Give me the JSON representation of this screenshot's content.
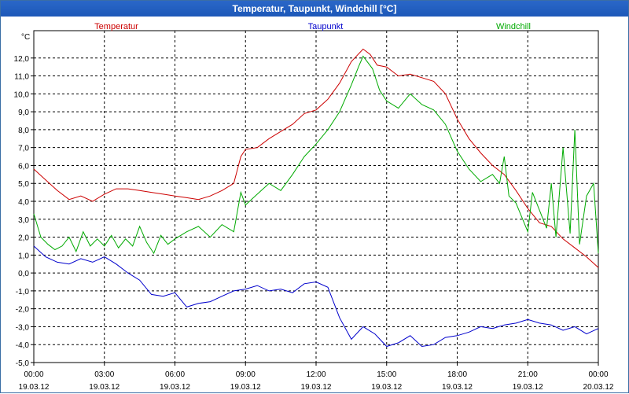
{
  "window": {
    "title": "Temperatur, Taupunkt, Windchill [°C]"
  },
  "chart_data": {
    "type": "line",
    "title": "Temperatur, Taupunkt, Windchill [°C]",
    "ylabel": "°C",
    "ylim": [
      -5,
      13
    ],
    "yticks": [
      "12,0",
      "11,0",
      "10,0",
      "9,0",
      "8,0",
      "7,0",
      "6,0",
      "5,0",
      "4,0",
      "3,0",
      "2,0",
      "1,0",
      "0,0",
      "-1,0",
      "-2,0",
      "-3,0",
      "-4,0",
      "-5,0"
    ],
    "ytick_values": [
      12,
      11,
      10,
      9,
      8,
      7,
      6,
      5,
      4,
      3,
      2,
      1,
      0,
      -1,
      -2,
      -3,
      -4,
      -5
    ],
    "xlim": [
      0,
      24
    ],
    "xticks": [
      {
        "time": "00:00",
        "date": "19.03.12",
        "h": 0
      },
      {
        "time": "03:00",
        "date": "19.03.12",
        "h": 3
      },
      {
        "time": "06:00",
        "date": "19.03.12",
        "h": 6
      },
      {
        "time": "09:00",
        "date": "19.03.12",
        "h": 9
      },
      {
        "time": "12:00",
        "date": "19.03.12",
        "h": 12
      },
      {
        "time": "15:00",
        "date": "19.03.12",
        "h": 15
      },
      {
        "time": "18:00",
        "date": "19.03.12",
        "h": 18
      },
      {
        "time": "21:00",
        "date": "19.03.12",
        "h": 21
      },
      {
        "time": "00:00",
        "date": "20.03.12",
        "h": 24
      }
    ],
    "grid": true,
    "legend_position": "top",
    "series": [
      {
        "name": "Temperatur",
        "color": "#cc0000",
        "points": [
          [
            0,
            5.8
          ],
          [
            0.5,
            5.2
          ],
          [
            1,
            4.6
          ],
          [
            1.5,
            4.1
          ],
          [
            2,
            4.3
          ],
          [
            2.5,
            4.0
          ],
          [
            3,
            4.4
          ],
          [
            3.5,
            4.7
          ],
          [
            4,
            4.7
          ],
          [
            4.5,
            4.6
          ],
          [
            5,
            4.5
          ],
          [
            5.5,
            4.4
          ],
          [
            6,
            4.3
          ],
          [
            6.5,
            4.2
          ],
          [
            7,
            4.1
          ],
          [
            7.5,
            4.3
          ],
          [
            8,
            4.6
          ],
          [
            8.5,
            5.0
          ],
          [
            8.8,
            6.5
          ],
          [
            9,
            6.9
          ],
          [
            9.5,
            7.0
          ],
          [
            10,
            7.5
          ],
          [
            10.5,
            7.9
          ],
          [
            11,
            8.3
          ],
          [
            11.5,
            8.9
          ],
          [
            12,
            9.1
          ],
          [
            12.5,
            9.7
          ],
          [
            13,
            10.6
          ],
          [
            13.5,
            11.8
          ],
          [
            14,
            12.5
          ],
          [
            14.3,
            12.2
          ],
          [
            14.6,
            11.6
          ],
          [
            15,
            11.5
          ],
          [
            15.5,
            11.0
          ],
          [
            16,
            11.1
          ],
          [
            16.5,
            10.9
          ],
          [
            17,
            10.7
          ],
          [
            17.5,
            10.0
          ],
          [
            18,
            8.6
          ],
          [
            18.5,
            7.5
          ],
          [
            19,
            6.7
          ],
          [
            19.5,
            6.0
          ],
          [
            20,
            5.5
          ],
          [
            20.5,
            4.6
          ],
          [
            21,
            3.6
          ],
          [
            21.5,
            2.8
          ],
          [
            22,
            2.6
          ],
          [
            22.5,
            1.9
          ],
          [
            23,
            1.4
          ],
          [
            23.5,
            0.9
          ],
          [
            24,
            0.3
          ]
        ]
      },
      {
        "name": "Taupunkt",
        "color": "#0000cc",
        "points": [
          [
            0,
            1.5
          ],
          [
            0.5,
            0.9
          ],
          [
            1,
            0.6
          ],
          [
            1.5,
            0.5
          ],
          [
            2,
            0.8
          ],
          [
            2.5,
            0.6
          ],
          [
            3,
            0.9
          ],
          [
            3.5,
            0.5
          ],
          [
            4,
            0.0
          ],
          [
            4.5,
            -0.4
          ],
          [
            5,
            -1.2
          ],
          [
            5.5,
            -1.3
          ],
          [
            6,
            -1.1
          ],
          [
            6.5,
            -1.9
          ],
          [
            7,
            -1.7
          ],
          [
            7.5,
            -1.6
          ],
          [
            8,
            -1.3
          ],
          [
            8.5,
            -1.0
          ],
          [
            9,
            -0.9
          ],
          [
            9.5,
            -0.7
          ],
          [
            10,
            -1.0
          ],
          [
            10.5,
            -0.9
          ],
          [
            11,
            -1.1
          ],
          [
            11.5,
            -0.6
          ],
          [
            12,
            -0.5
          ],
          [
            12.5,
            -0.8
          ],
          [
            13,
            -2.5
          ],
          [
            13.5,
            -3.7
          ],
          [
            14,
            -3.0
          ],
          [
            14.5,
            -3.4
          ],
          [
            15,
            -4.1
          ],
          [
            15.5,
            -3.9
          ],
          [
            16,
            -3.5
          ],
          [
            16.5,
            -4.1
          ],
          [
            17,
            -4.0
          ],
          [
            17.5,
            -3.6
          ],
          [
            18,
            -3.5
          ],
          [
            18.5,
            -3.3
          ],
          [
            19,
            -3.0
          ],
          [
            19.5,
            -3.1
          ],
          [
            20,
            -2.9
          ],
          [
            20.5,
            -2.8
          ],
          [
            21,
            -2.6
          ],
          [
            21.5,
            -2.8
          ],
          [
            22,
            -2.9
          ],
          [
            22.5,
            -3.2
          ],
          [
            23,
            -3.0
          ],
          [
            23.5,
            -3.4
          ],
          [
            24,
            -3.1
          ]
        ]
      },
      {
        "name": "Windchill",
        "color": "#00aa00",
        "points": [
          [
            0,
            3.3
          ],
          [
            0.3,
            2.0
          ],
          [
            0.6,
            1.6
          ],
          [
            0.9,
            1.3
          ],
          [
            1.2,
            1.5
          ],
          [
            1.5,
            2.0
          ],
          [
            1.8,
            1.2
          ],
          [
            2.1,
            2.3
          ],
          [
            2.4,
            1.5
          ],
          [
            2.7,
            1.9
          ],
          [
            3,
            1.5
          ],
          [
            3.3,
            2.1
          ],
          [
            3.6,
            1.4
          ],
          [
            3.9,
            1.9
          ],
          [
            4.2,
            1.5
          ],
          [
            4.5,
            2.6
          ],
          [
            4.8,
            1.7
          ],
          [
            5.1,
            1.1
          ],
          [
            5.4,
            2.1
          ],
          [
            5.7,
            1.6
          ],
          [
            6,
            1.9
          ],
          [
            6.5,
            2.3
          ],
          [
            7,
            2.6
          ],
          [
            7.5,
            2.0
          ],
          [
            8,
            2.7
          ],
          [
            8.5,
            2.3
          ],
          [
            8.8,
            4.5
          ],
          [
            9,
            3.8
          ],
          [
            9.5,
            4.4
          ],
          [
            10,
            5.0
          ],
          [
            10.5,
            4.6
          ],
          [
            11,
            5.5
          ],
          [
            11.5,
            6.5
          ],
          [
            12,
            7.2
          ],
          [
            12.5,
            8.0
          ],
          [
            13,
            9.0
          ],
          [
            13.5,
            10.5
          ],
          [
            13.8,
            11.5
          ],
          [
            14,
            12.1
          ],
          [
            14.4,
            11.4
          ],
          [
            14.7,
            10.2
          ],
          [
            15,
            9.6
          ],
          [
            15.5,
            9.2
          ],
          [
            16,
            10.0
          ],
          [
            16.5,
            9.4
          ],
          [
            17,
            9.1
          ],
          [
            17.5,
            8.3
          ],
          [
            18,
            6.8
          ],
          [
            18.5,
            5.8
          ],
          [
            19,
            5.1
          ],
          [
            19.5,
            5.5
          ],
          [
            19.8,
            5.0
          ],
          [
            20,
            6.5
          ],
          [
            20.2,
            4.3
          ],
          [
            20.5,
            3.9
          ],
          [
            21,
            2.3
          ],
          [
            21.2,
            4.5
          ],
          [
            21.5,
            3.5
          ],
          [
            21.8,
            2.5
          ],
          [
            22,
            5.0
          ],
          [
            22.2,
            2.0
          ],
          [
            22.5,
            7.0
          ],
          [
            22.8,
            2.2
          ],
          [
            23,
            8.0
          ],
          [
            23.2,
            1.6
          ],
          [
            23.5,
            4.3
          ],
          [
            23.8,
            5.0
          ],
          [
            24,
            1.1
          ]
        ]
      }
    ]
  }
}
